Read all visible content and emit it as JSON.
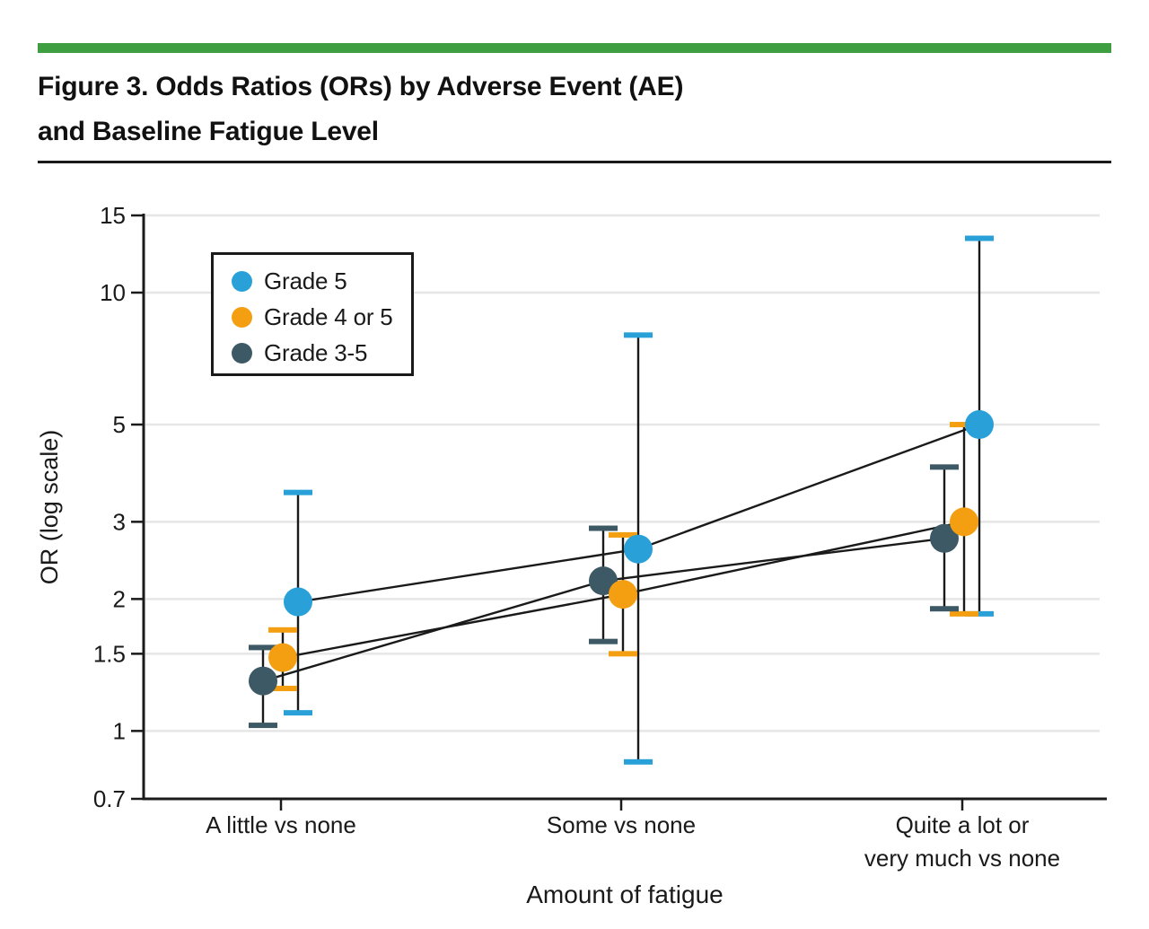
{
  "figure": {
    "accent_color": "#3F9E42",
    "title_line1": "Figure 3. Odds Ratios (ORs) by Adverse Event (AE)",
    "title_line2": "and Baseline Fatigue Level"
  },
  "legend": {
    "items": [
      {
        "label": "Grade 5",
        "color": "#29A1D8"
      },
      {
        "label": "Grade 4 or 5",
        "color": "#F49E12"
      },
      {
        "label": "Grade 3-5",
        "color": "#3D5965"
      }
    ]
  },
  "chart_data": {
    "type": "scatter",
    "subtype": "point_estimates_with_95ci_error_bars",
    "title": "Figure 3. Odds Ratios (ORs) by Adverse Event (AE) and Baseline Fatigue Level",
    "xlabel": "Amount of fatigue",
    "ylabel": "OR (log scale)",
    "y_scale": "log",
    "ylim": [
      0.7,
      15
    ],
    "yticks": [
      15,
      10,
      5,
      3,
      2,
      1.5,
      1,
      0.7
    ],
    "ytick_labels": [
      "15",
      "10",
      "5",
      "3",
      "2",
      "1.5",
      "1",
      "0.7"
    ],
    "grid": "horizontal",
    "legend_position": "upper left inside plot",
    "categories": [
      "A little vs none",
      "Some vs none",
      "Quite a lot or\nvery much vs none"
    ],
    "series": [
      {
        "name": "Grade 5",
        "color": "#29A1D8",
        "or": [
          1.97,
          2.6,
          5.0
        ],
        "ci_low": [
          1.1,
          0.85,
          1.85
        ],
        "ci_high": [
          3.5,
          8.0,
          13.3
        ]
      },
      {
        "name": "Grade 4 or 5",
        "color": "#F49E12",
        "or": [
          1.47,
          2.05,
          3.0
        ],
        "ci_low": [
          1.25,
          1.5,
          1.85
        ],
        "ci_high": [
          1.7,
          2.8,
          5.0
        ]
      },
      {
        "name": "Grade 3-5",
        "color": "#3D5965",
        "or": [
          1.3,
          2.2,
          2.75
        ],
        "ci_low": [
          1.03,
          1.6,
          1.9
        ],
        "ci_high": [
          1.55,
          2.9,
          4.0
        ]
      }
    ]
  }
}
